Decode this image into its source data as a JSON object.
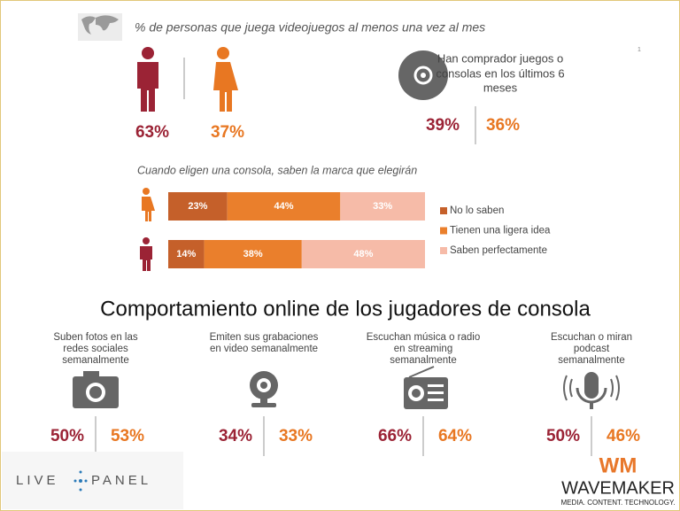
{
  "header": {
    "title": "% de personas que juega videojuegos al menos una vez al mes"
  },
  "page_number": "1",
  "gender": {
    "male": "63%",
    "female": "37%"
  },
  "purchase": {
    "text": [
      "Han comprador juegos o",
      "consolas en los últimos 6",
      "meses"
    ],
    "male": "39%",
    "female": "36%"
  },
  "brand_choice": {
    "title": "Cuando eligen una consola, saben la marca que elegirán",
    "rows": [
      {
        "values": [
          23,
          44,
          33
        ],
        "value_labels": [
          "23%",
          "44%",
          "33%"
        ]
      },
      {
        "values": [
          14,
          38,
          48
        ],
        "value_labels": [
          "14%",
          "38%",
          "48%"
        ]
      }
    ],
    "legend": [
      {
        "name": "No lo saben",
        "color": "#c5602a"
      },
      {
        "name": "Tienen una ligera idea",
        "color": "#ea7f2c"
      },
      {
        "name": "Saben perfectamente",
        "color": "#f6bba8"
      }
    ]
  },
  "online": {
    "title": "Comportamiento online de los jugadores de consola",
    "items": [
      {
        "label": [
          "Suben fotos en las",
          "redes sociales",
          "semanalmente"
        ],
        "male": "50%",
        "female": "53%"
      },
      {
        "label": [
          "Emiten sus grabaciones",
          "en video semanalmente"
        ],
        "male": "34%",
        "female": "33%"
      },
      {
        "label": [
          "Escuchan música o radio",
          "en streaming",
          "semanalmente"
        ],
        "male": "66%",
        "female": "64%"
      },
      {
        "label": [
          "Escuchan o miran",
          "podcast",
          "semanalmente"
        ],
        "male": "50%",
        "female": "46%"
      }
    ]
  },
  "logos": {
    "left": [
      "LIVE",
      "PANEL"
    ],
    "mark": "WM",
    "right": "WAVEMAKER",
    "tagline": "MEDIA. CONTENT. TECHNOLOGY."
  }
}
